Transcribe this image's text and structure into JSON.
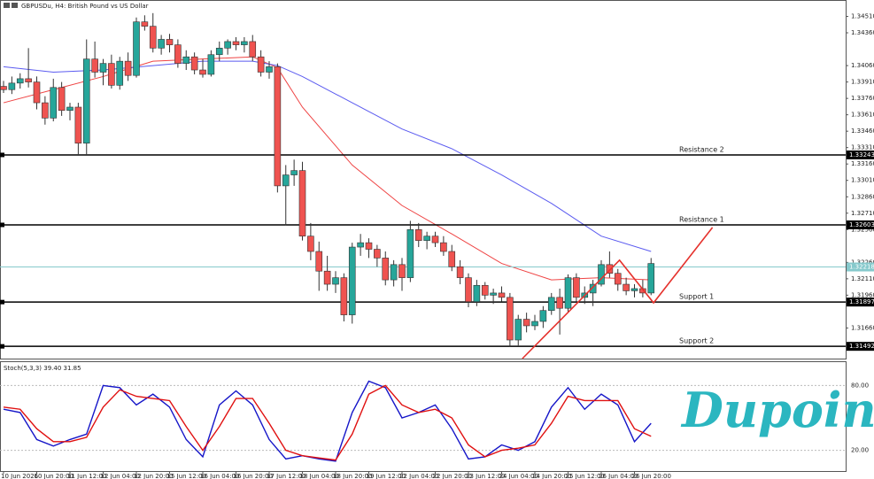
{
  "chart_data": {
    "type": "candlestick",
    "title": "GBPUSDu, H4: British Pound vs US Dollar",
    "watermark": "Dupoin",
    "bull_color": "#26a69a",
    "bear_color": "#ef5350",
    "categories": [
      "10 Jun 2026",
      null,
      null,
      null,
      "10 Jun 20:00",
      null,
      null,
      null,
      "11 Jun 12:00",
      null,
      null,
      null,
      "12 Jun 04:00",
      null,
      null,
      null,
      "12 Jun 20:00",
      null,
      null,
      null,
      "15 Jun 12:00",
      null,
      null,
      null,
      "16 Jun 04:00",
      null,
      null,
      null,
      "16 Jun 20:00",
      null,
      null,
      null,
      "17 Jun 12:00",
      null,
      null,
      null,
      "18 Jun 04:00",
      null,
      null,
      null,
      "18 Jun 20:00",
      null,
      null,
      null,
      "19 Jun 12:00",
      null,
      null,
      null,
      "22 Jun 04:00",
      null,
      null,
      null,
      "22 Jun 20:00",
      null,
      null,
      null,
      "23 Jun 12:00",
      null,
      null,
      null,
      "24 Jun 04:00",
      null,
      null,
      null,
      "24 Jun 20:00",
      null,
      null,
      null,
      "25 Jun 12:00",
      null,
      null,
      null,
      "26 Jun 04:00",
      null,
      null,
      null,
      "26 Jun 20:00",
      null,
      null
    ],
    "open": [
      1.3387,
      1.3384,
      1.339,
      1.3394,
      1.3391,
      1.3372,
      1.3358,
      1.3386,
      1.3365,
      1.3368,
      1.3335,
      1.3412,
      1.34,
      1.3408,
      1.3388,
      1.341,
      1.3397,
      1.3446,
      1.3442,
      1.3422,
      1.343,
      1.3425,
      1.3408,
      1.3414,
      1.3402,
      1.3398,
      1.3416,
      1.3422,
      1.3428,
      1.3425,
      1.3428,
      1.3414,
      1.34,
      1.3405,
      1.3296,
      1.3306,
      1.331,
      1.325,
      1.3236,
      1.3218,
      1.3206,
      1.3212,
      1.3178,
      1.324,
      1.3244,
      1.3238,
      1.323,
      1.321,
      1.3224,
      1.3212,
      1.3256,
      1.3246,
      1.325,
      1.3244,
      1.3236,
      1.3222,
      1.3212,
      1.319,
      1.3205,
      1.3196,
      1.3198,
      1.3194,
      1.3155,
      1.3174,
      1.3168,
      1.3172,
      1.3182,
      1.3194,
      1.3184,
      1.3212,
      1.3194,
      1.3198,
      1.3206,
      1.3224,
      1.3216,
      1.3206,
      1.32,
      1.3202,
      1.3198
    ],
    "high": [
      1.3392,
      1.3396,
      1.3399,
      1.3422,
      1.3396,
      1.3378,
      1.3394,
      1.3391,
      1.3372,
      1.3372,
      1.343,
      1.3428,
      1.3412,
      1.3416,
      1.3414,
      1.3418,
      1.345,
      1.3452,
      1.3454,
      1.3434,
      1.3435,
      1.343,
      1.342,
      1.3418,
      1.3412,
      1.342,
      1.3428,
      1.343,
      1.3432,
      1.3432,
      1.3434,
      1.342,
      1.341,
      1.3408,
      1.3315,
      1.332,
      1.3318,
      1.3262,
      1.3245,
      1.3232,
      1.3218,
      1.3216,
      1.3244,
      1.3252,
      1.3248,
      1.3242,
      1.3236,
      1.3228,
      1.323,
      1.3264,
      1.3262,
      1.3254,
      1.3254,
      1.325,
      1.3242,
      1.3228,
      1.3216,
      1.321,
      1.3208,
      1.3202,
      1.3204,
      1.3198,
      1.3178,
      1.318,
      1.3178,
      1.3186,
      1.3198,
      1.3202,
      1.3215,
      1.3216,
      1.3204,
      1.321,
      1.3228,
      1.3236,
      1.322,
      1.3212,
      1.3206,
      1.321,
      1.323
    ],
    "low": [
      1.3381,
      1.338,
      1.3385,
      1.3386,
      1.3366,
      1.3352,
      1.3355,
      1.336,
      1.3356,
      1.3325,
      1.3325,
      1.3395,
      1.3388,
      1.3385,
      1.3384,
      1.3392,
      1.3395,
      1.3438,
      1.3418,
      1.3416,
      1.3418,
      1.3404,
      1.3402,
      1.3398,
      1.3395,
      1.3396,
      1.341,
      1.3416,
      1.342,
      1.3418,
      1.341,
      1.3396,
      1.3394,
      1.329,
      1.326,
      1.3296,
      1.3246,
      1.3228,
      1.32,
      1.32,
      1.3198,
      1.3172,
      1.317,
      1.3232,
      1.323,
      1.3222,
      1.3205,
      1.3204,
      1.32,
      1.3208,
      1.324,
      1.3238,
      1.324,
      1.3232,
      1.3218,
      1.3206,
      1.3185,
      1.3186,
      1.3192,
      1.3188,
      1.319,
      1.3149,
      1.315,
      1.3162,
      1.3164,
      1.3166,
      1.3178,
      1.316,
      1.318,
      1.319,
      1.3188,
      1.3186,
      1.3204,
      1.3212,
      1.32,
      1.3196,
      1.3194,
      1.3194,
      1.3196
    ],
    "close": [
      1.3384,
      1.339,
      1.3394,
      1.3391,
      1.3372,
      1.3358,
      1.3386,
      1.3365,
      1.3368,
      1.3335,
      1.3412,
      1.34,
      1.3408,
      1.3388,
      1.341,
      1.3397,
      1.3446,
      1.3442,
      1.3422,
      1.343,
      1.3425,
      1.3408,
      1.3414,
      1.3402,
      1.3398,
      1.3416,
      1.3422,
      1.3428,
      1.3425,
      1.3428,
      1.3414,
      1.34,
      1.3405,
      1.3296,
      1.3306,
      1.331,
      1.325,
      1.3236,
      1.3218,
      1.3206,
      1.3212,
      1.3178,
      1.324,
      1.3244,
      1.3238,
      1.323,
      1.321,
      1.3224,
      1.3212,
      1.3256,
      1.3246,
      1.325,
      1.3244,
      1.3236,
      1.3222,
      1.3212,
      1.319,
      1.3205,
      1.3196,
      1.3198,
      1.3194,
      1.3155,
      1.3174,
      1.3168,
      1.3172,
      1.3182,
      1.3194,
      1.3184,
      1.3212,
      1.3194,
      1.3198,
      1.3206,
      1.3224,
      1.3216,
      1.3206,
      1.32,
      1.3202,
      1.3198,
      1.3225
    ],
    "ylim": [
      1.3138,
      1.3466
    ],
    "yticks": [
      {
        "value": 1.3451,
        "label": "1.34510"
      },
      {
        "value": 1.3436,
        "label": "1.34360"
      },
      {
        "value": 1.3406,
        "label": "1.34060"
      },
      {
        "value": 1.3391,
        "label": "1.33910"
      },
      {
        "value": 1.3376,
        "label": "1.33760"
      },
      {
        "value": 1.3361,
        "label": "1.33610"
      },
      {
        "value": 1.3346,
        "label": "1.33460"
      },
      {
        "value": 1.3331,
        "label": "1.33310"
      },
      {
        "value": 1.3316,
        "label": "1.33160"
      },
      {
        "value": 1.3301,
        "label": "1.33010"
      },
      {
        "value": 1.3286,
        "label": "1.32860"
      },
      {
        "value": 1.3271,
        "label": "1.32710"
      },
      {
        "value": 1.3256,
        "label": "1.32560"
      },
      {
        "value": 1.3226,
        "label": "1.32260"
      },
      {
        "value": 1.3211,
        "label": "1.32110"
      },
      {
        "value": 1.3196,
        "label": "1.31960"
      },
      {
        "value": 1.3166,
        "label": "1.31660"
      }
    ],
    "overlays": [
      {
        "name": null,
        "color": "#ef4444",
        "x": [
          0,
          6,
          12,
          18,
          24,
          30,
          33,
          36,
          42,
          48,
          54,
          60,
          66,
          72,
          78
        ],
        "values": [
          1.3372,
          1.3384,
          1.3396,
          1.341,
          1.3412,
          1.3414,
          1.3404,
          1.3368,
          1.3315,
          1.3278,
          1.3252,
          1.3225,
          1.321,
          1.3212,
          1.321
        ]
      },
      {
        "name": null,
        "color": "#5b5bf0",
        "x": [
          0,
          6,
          12,
          18,
          24,
          30,
          33,
          36,
          42,
          48,
          54,
          60,
          66,
          72,
          78
        ],
        "values": [
          1.3405,
          1.34,
          1.3402,
          1.3406,
          1.341,
          1.341,
          1.3406,
          1.3396,
          1.3372,
          1.3348,
          1.333,
          1.3306,
          1.328,
          1.325,
          1.3236
        ]
      }
    ],
    "current_price": {
      "value": 1.32218,
      "color": "#86c9cc"
    },
    "levels": [
      {
        "name": "Resistance 2",
        "value": 1.33243
      },
      {
        "name": "Resistance 1",
        "value": 1.32603
      },
      {
        "name": "Support 1",
        "value": 1.31897
      },
      {
        "name": "Support 2",
        "value": 1.31492
      }
    ],
    "pattern": {
      "color": "#e5322d",
      "x": [
        62.5,
        74.2,
        78.3,
        85.4
      ],
      "values": [
        1.3138,
        1.3228,
        1.3189,
        1.3258
      ]
    },
    "indicator": {
      "label": "Stoch(5,3,3) 39.40 31.85",
      "ylim": [
        0,
        100
      ],
      "yticks": [
        {
          "value": 80,
          "label": "80.00"
        },
        {
          "value": 20,
          "label": "20.00"
        }
      ],
      "x": [
        0,
        2,
        4,
        6,
        8,
        10,
        12,
        14,
        16,
        18,
        20,
        22,
        24,
        26,
        28,
        30,
        32,
        34,
        36,
        38,
        40,
        42,
        44,
        46,
        48,
        50,
        52,
        54,
        56,
        58,
        60,
        62,
        64,
        66,
        68,
        70,
        72,
        74,
        76,
        78
      ],
      "series": [
        {
          "name": null,
          "color": "#1515c8",
          "values": [
            58,
            55,
            30,
            24,
            30,
            35,
            80,
            78,
            62,
            72,
            60,
            30,
            14,
            62,
            75,
            62,
            30,
            12,
            15,
            12,
            10,
            55,
            84,
            78,
            50,
            55,
            62,
            40,
            12,
            14,
            25,
            20,
            28,
            60,
            78,
            58,
            72,
            62,
            28,
            45
          ]
        },
        {
          "name": null,
          "color": "#e01010",
          "values": [
            60,
            58,
            40,
            28,
            28,
            32,
            60,
            76,
            70,
            68,
            66,
            42,
            20,
            42,
            68,
            68,
            45,
            20,
            15,
            13,
            11,
            35,
            72,
            80,
            62,
            55,
            58,
            50,
            25,
            14,
            20,
            22,
            25,
            45,
            70,
            66,
            66,
            66,
            40,
            33
          ]
        }
      ]
    }
  }
}
